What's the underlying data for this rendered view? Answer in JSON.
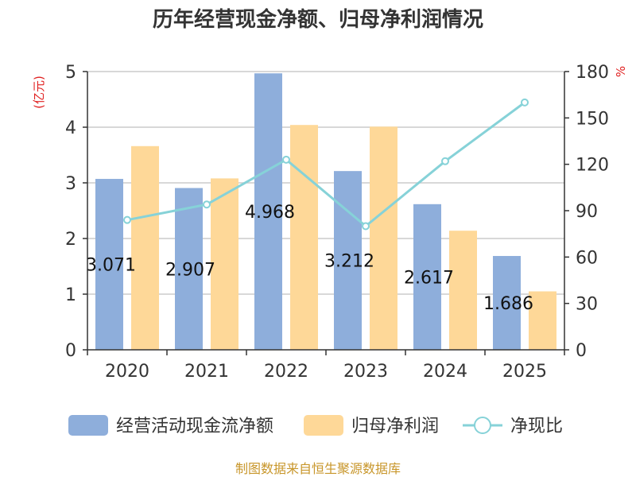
{
  "title": "历年经营现金净额、归母净利润情况",
  "source": "制图数据来自恒生聚源数据库",
  "chart_data": {
    "type": "bar",
    "categories": [
      "2020",
      "2021",
      "2022",
      "2023",
      "2024",
      "2025"
    ],
    "series": [
      {
        "name": "经营活动现金流净额",
        "type": "bar",
        "axis": "left",
        "color": "#8eaedb",
        "values": [
          3.071,
          2.907,
          4.968,
          3.212,
          2.617,
          1.686
        ],
        "show_labels": true
      },
      {
        "name": "归母净利润",
        "type": "bar",
        "axis": "left",
        "color": "#fed898",
        "values": [
          3.66,
          3.08,
          4.04,
          4.01,
          2.14,
          1.05
        ],
        "show_labels": false
      },
      {
        "name": "净现比",
        "type": "line",
        "axis": "right",
        "color": "#86d2d8",
        "values": [
          84,
          94,
          123,
          80,
          122,
          160
        ],
        "show_labels": false
      }
    ],
    "y_left": {
      "unit": "(亿元)",
      "ylim": [
        0,
        5
      ],
      "ticks": [
        "0",
        "1",
        "2",
        "3",
        "4",
        "5"
      ]
    },
    "y_right": {
      "unit": "%",
      "ylim": [
        0,
        180
      ],
      "ticks": [
        "0",
        "30",
        "60",
        "90",
        "120",
        "150",
        "180"
      ]
    },
    "grid": true,
    "legend_position": "bottom"
  }
}
